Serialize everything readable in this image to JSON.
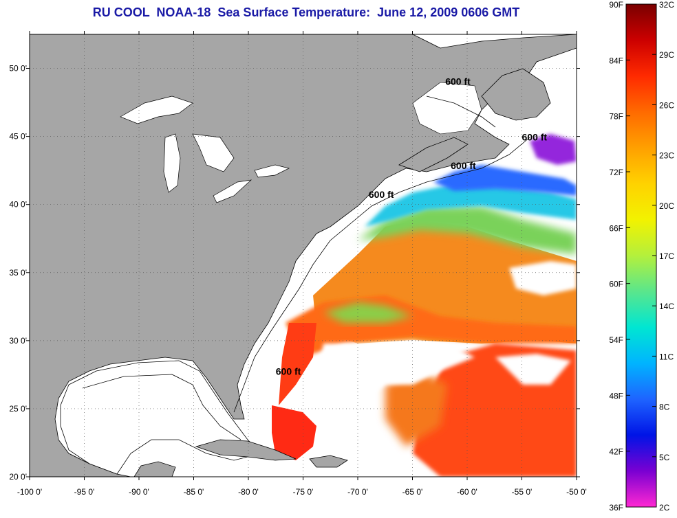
{
  "title": "RU COOL  NOAA-18  Sea Surface Temperature:  June 12, 2009 0606 GMT",
  "map": {
    "lon_range": [
      -100,
      -50
    ],
    "lat_range": [
      20,
      52.5
    ],
    "x_ticks": [
      "-100 0'",
      "-95 0'",
      "-90 0'",
      "-85 0'",
      "-80 0'",
      "-75 0'",
      "-70 0'",
      "-65 0'",
      "-60 0'",
      "-55 0'",
      "-50 0'"
    ],
    "y_ticks": [
      "20 0'",
      "25 0'",
      "30 0'",
      "35 0'",
      "40 0'",
      "45 0'",
      "50 0'"
    ],
    "grid": "dotted",
    "land_color": "#a6a6a6",
    "no_data_color": "#ffffff",
    "depth_contour_labels": [
      {
        "text": "600 ft",
        "lon": -77.5,
        "lat": 27.5
      },
      {
        "text": "600 ft",
        "lon": -69.0,
        "lat": 40.5
      },
      {
        "text": "600 ft",
        "lon": -61.5,
        "lat": 42.6
      },
      {
        "text": "600 ft",
        "lon": -62.0,
        "lat": 48.8
      },
      {
        "text": "600 ft",
        "lon": -55.0,
        "lat": 44.7
      }
    ]
  },
  "colorbar": {
    "fahrenheit_labels": [
      "90F",
      "84F",
      "78F",
      "72F",
      "66F",
      "60F",
      "54F",
      "48F",
      "42F",
      "36F"
    ],
    "celsius_labels": [
      "32C",
      "29C",
      "26C",
      "23C",
      "20C",
      "17C",
      "14C",
      "11C",
      "8C",
      "5C",
      "2C"
    ],
    "colors": [
      "#7a0000",
      "#cc0000",
      "#ff2a00",
      "#ff6a00",
      "#ffa000",
      "#ffd200",
      "#f2f200",
      "#b4f03c",
      "#5ae68c",
      "#00e6d2",
      "#00b4ff",
      "#1e64ff",
      "#0014e6",
      "#7a00d2",
      "#ff28d2"
    ]
  }
}
